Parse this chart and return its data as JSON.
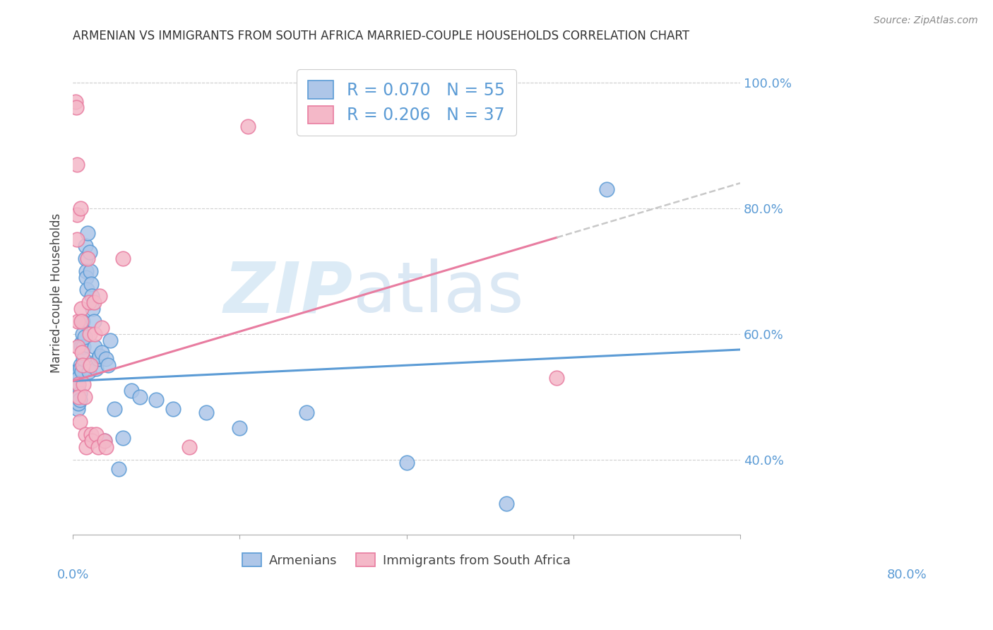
{
  "title": "ARMENIAN VS IMMIGRANTS FROM SOUTH AFRICA MARRIED-COUPLE HOUSEHOLDS CORRELATION CHART",
  "source": "Source: ZipAtlas.com",
  "ylabel": "Married-couple Households",
  "xmin": 0.0,
  "xmax": 0.8,
  "ymin": 0.28,
  "ymax": 1.05,
  "y_ticks_right": [
    0.4,
    0.6,
    0.8,
    1.0
  ],
  "y_tick_labels_right": [
    "40.0%",
    "60.0%",
    "80.0%",
    "100.0%"
  ],
  "armenian_color": "#aec6e8",
  "armenian_edge_color": "#5b9bd5",
  "south_africa_color": "#f4b8c8",
  "south_africa_edge_color": "#e87ca0",
  "trend_armenian_color": "#5b9bd5",
  "trend_sa_color": "#e87ca0",
  "trend_sa_dash_color": "#c8c8c8",
  "background_color": "#ffffff",
  "grid_color": "#d0d0d0",
  "legend_label_armenian": "R = 0.070   N = 55",
  "legend_label_sa": "R = 0.206   N = 37",
  "bottom_legend_armenian": "Armenians",
  "bottom_legend_sa": "Immigrants from South Africa",
  "watermark_zip": "ZIP",
  "watermark_atlas": "atlas",
  "armenian_x": [
    0.004,
    0.005,
    0.006,
    0.006,
    0.007,
    0.007,
    0.007,
    0.007,
    0.008,
    0.008,
    0.009,
    0.009,
    0.01,
    0.01,
    0.011,
    0.012,
    0.012,
    0.013,
    0.013,
    0.014,
    0.015,
    0.015,
    0.016,
    0.016,
    0.017,
    0.018,
    0.019,
    0.02,
    0.021,
    0.022,
    0.023,
    0.024,
    0.025,
    0.026,
    0.028,
    0.03,
    0.032,
    0.035,
    0.038,
    0.04,
    0.042,
    0.045,
    0.05,
    0.055,
    0.06,
    0.07,
    0.08,
    0.1,
    0.12,
    0.16,
    0.2,
    0.28,
    0.4,
    0.52,
    0.64
  ],
  "armenian_y": [
    0.54,
    0.51,
    0.49,
    0.48,
    0.53,
    0.52,
    0.5,
    0.49,
    0.505,
    0.495,
    0.55,
    0.545,
    0.585,
    0.58,
    0.54,
    0.62,
    0.6,
    0.58,
    0.56,
    0.595,
    0.74,
    0.72,
    0.7,
    0.69,
    0.67,
    0.76,
    0.54,
    0.73,
    0.7,
    0.68,
    0.66,
    0.64,
    0.62,
    0.58,
    0.545,
    0.56,
    0.565,
    0.57,
    0.43,
    0.56,
    0.55,
    0.59,
    0.48,
    0.385,
    0.435,
    0.51,
    0.5,
    0.495,
    0.48,
    0.475,
    0.45,
    0.475,
    0.395,
    0.33,
    0.83
  ],
  "south_africa_x": [
    0.003,
    0.004,
    0.005,
    0.005,
    0.005,
    0.006,
    0.006,
    0.007,
    0.007,
    0.008,
    0.009,
    0.01,
    0.01,
    0.011,
    0.012,
    0.013,
    0.014,
    0.015,
    0.016,
    0.018,
    0.019,
    0.02,
    0.021,
    0.022,
    0.023,
    0.025,
    0.026,
    0.028,
    0.03,
    0.032,
    0.035,
    0.038,
    0.04,
    0.06,
    0.14,
    0.21,
    0.58
  ],
  "south_africa_y": [
    0.97,
    0.96,
    0.87,
    0.79,
    0.75,
    0.62,
    0.58,
    0.52,
    0.5,
    0.46,
    0.8,
    0.64,
    0.62,
    0.57,
    0.55,
    0.52,
    0.5,
    0.44,
    0.42,
    0.72,
    0.65,
    0.6,
    0.55,
    0.44,
    0.43,
    0.65,
    0.6,
    0.44,
    0.42,
    0.66,
    0.61,
    0.43,
    0.42,
    0.72,
    0.42,
    0.93,
    0.53
  ]
}
